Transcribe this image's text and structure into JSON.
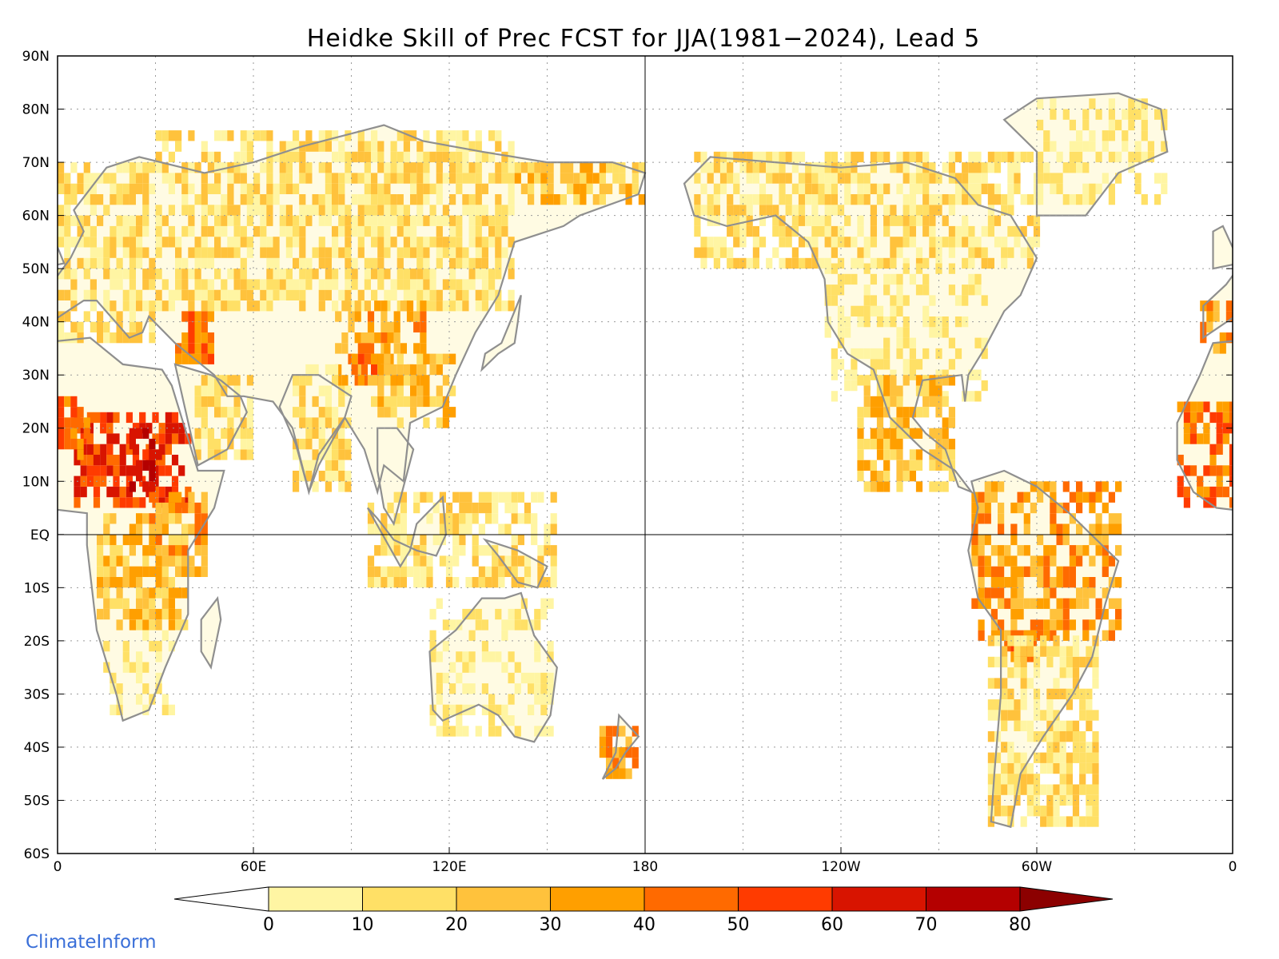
{
  "title": "Heidke Skill of Prec FCST for JJA(1981−2024), Lead 5",
  "brand": "ClimateInform",
  "map": {
    "projection": "equirectangular",
    "lon_range": [
      0,
      360
    ],
    "lat_range": [
      -60,
      90
    ],
    "grid": "dotted",
    "lat_labels": [
      {
        "lat": 90,
        "text": "90N"
      },
      {
        "lat": 80,
        "text": "80N"
      },
      {
        "lat": 70,
        "text": "70N"
      },
      {
        "lat": 60,
        "text": "60N"
      },
      {
        "lat": 50,
        "text": "50N"
      },
      {
        "lat": 40,
        "text": "40N"
      },
      {
        "lat": 30,
        "text": "30N"
      },
      {
        "lat": 20,
        "text": "20N"
      },
      {
        "lat": 10,
        "text": "10N"
      },
      {
        "lat": 0,
        "text": "EQ"
      },
      {
        "lat": -10,
        "text": "10S"
      },
      {
        "lat": -20,
        "text": "20S"
      },
      {
        "lat": -30,
        "text": "30S"
      },
      {
        "lat": -40,
        "text": "40S"
      },
      {
        "lat": -50,
        "text": "50S"
      },
      {
        "lat": -60,
        "text": "60S"
      }
    ],
    "lon_labels": [
      {
        "lon": 0,
        "text": "0"
      },
      {
        "lon": 60,
        "text": "60E"
      },
      {
        "lon": 120,
        "text": "120E"
      },
      {
        "lon": 180,
        "text": "180"
      },
      {
        "lon": 240,
        "text": "120W"
      },
      {
        "lon": 300,
        "text": "60W"
      },
      {
        "lon": 360,
        "text": "0"
      }
    ]
  },
  "colorbar": {
    "labels": [
      "0",
      "10",
      "20",
      "30",
      "40",
      "50",
      "60",
      "70",
      "80"
    ],
    "below_color": "#ffffff",
    "colors": [
      "#fff5a3",
      "#ffe066",
      "#ffc23c",
      "#ff9f00",
      "#ff6a00",
      "#ff3b00",
      "#d81400",
      "#b40000"
    ],
    "above_color": "#8c0000"
  },
  "skill_regions": [
    {
      "lon": [
        5,
        40
      ],
      "lat": [
        5,
        22
      ],
      "level": 6
    },
    {
      "lon": [
        22,
        32
      ],
      "lat": [
        8,
        20
      ],
      "level": 7
    },
    {
      "lon": [
        0,
        10
      ],
      "lat": [
        14,
        26
      ],
      "level": 5
    },
    {
      "lon": [
        28,
        45
      ],
      "lat": [
        -8,
        8
      ],
      "level": 4
    },
    {
      "lon": [
        12,
        40
      ],
      "lat": [
        -18,
        4
      ],
      "level": 3
    },
    {
      "lon": [
        14,
        35
      ],
      "lat": [
        -34,
        -18
      ],
      "level": 1
    },
    {
      "lon": [
        36,
        48
      ],
      "lat": [
        32,
        42
      ],
      "level": 5
    },
    {
      "lon": [
        42,
        60
      ],
      "lat": [
        14,
        30
      ],
      "level": 2
    },
    {
      "lon": [
        0,
        30
      ],
      "lat": [
        36,
        70
      ],
      "level": 2
    },
    {
      "lon": [
        30,
        140
      ],
      "lat": [
        42,
        75
      ],
      "level": 2
    },
    {
      "lon": [
        85,
        112
      ],
      "lat": [
        28,
        44
      ],
      "level": 4
    },
    {
      "lon": [
        90,
        102
      ],
      "lat": [
        28,
        36
      ],
      "level": 5
    },
    {
      "lon": [
        72,
        90
      ],
      "lat": [
        8,
        32
      ],
      "level": 2
    },
    {
      "lon": [
        96,
        122
      ],
      "lat": [
        20,
        34
      ],
      "level": 3
    },
    {
      "lon": [
        140,
        180
      ],
      "lat": [
        62,
        70
      ],
      "level": 3
    },
    {
      "lon": [
        95,
        152
      ],
      "lat": [
        -10,
        8
      ],
      "level": 2
    },
    {
      "lon": [
        114,
        152
      ],
      "lat": [
        -38,
        -12
      ],
      "level": 1
    },
    {
      "lon": [
        166,
        178
      ],
      "lat": [
        -46,
        -36
      ],
      "level": 4
    },
    {
      "lon": [
        195,
        300
      ],
      "lat": [
        50,
        72
      ],
      "level": 2
    },
    {
      "lon": [
        235,
        285
      ],
      "lat": [
        25,
        50
      ],
      "level": 1
    },
    {
      "lon": [
        245,
        275
      ],
      "lat": [
        8,
        30
      ],
      "level": 3
    },
    {
      "lon": [
        280,
        325
      ],
      "lat": [
        -20,
        10
      ],
      "level": 4
    },
    {
      "lon": [
        290,
        300
      ],
      "lat": [
        -24,
        -18
      ],
      "level": 5
    },
    {
      "lon": [
        285,
        318
      ],
      "lat": [
        -55,
        -20
      ],
      "level": 2
    },
    {
      "lon": [
        300,
        340
      ],
      "lat": [
        62,
        82
      ],
      "level": 1
    },
    {
      "lon": [
        343,
        360
      ],
      "lat": [
        5,
        24
      ],
      "level": 5
    },
    {
      "lon": [
        350,
        360
      ],
      "lat": [
        34,
        43
      ],
      "level": 4
    }
  ]
}
